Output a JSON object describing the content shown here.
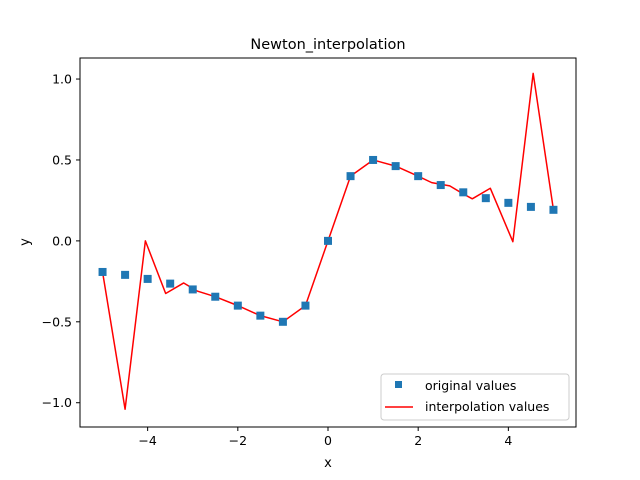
{
  "chart_data": {
    "type": "line",
    "title": "Newton_interpolation",
    "xlabel": "x",
    "ylabel": "y",
    "xlim": [
      -5.5,
      5.5
    ],
    "ylim": [
      -1.15,
      1.13
    ],
    "x_ticks": [
      -4,
      -2,
      0,
      2,
      4
    ],
    "x_tick_labels": [
      "−4",
      "−2",
      "0",
      "2",
      "4"
    ],
    "y_ticks": [
      -1.0,
      -0.5,
      0.0,
      0.5,
      1.0
    ],
    "y_tick_labels": [
      "−1.0",
      "−0.5",
      "0.0",
      "0.5",
      "1.0"
    ],
    "grid": false,
    "legend_position": "lower-right",
    "series": [
      {
        "name": "original values",
        "style": "markers",
        "marker": "square",
        "color": "#1f77b4",
        "x": [
          -5,
          -4.5,
          -4,
          -3.5,
          -3,
          -2.5,
          -2,
          -1.5,
          -1,
          -0.5,
          0,
          0.5,
          1,
          1.5,
          2,
          2.5,
          3,
          3.5,
          4,
          4.5,
          5
        ],
        "y": [
          -0.192,
          -0.21,
          -0.235,
          -0.264,
          -0.3,
          -0.345,
          -0.4,
          -0.462,
          -0.5,
          -0.4,
          0.0,
          0.4,
          0.5,
          0.462,
          0.4,
          0.345,
          0.3,
          0.264,
          0.235,
          0.21,
          0.192
        ]
      },
      {
        "name": "interpolation values",
        "style": "line",
        "color": "#ff0000",
        "x": [
          -5,
          -4.5,
          -4.05,
          -3.6,
          -3.2,
          -2.9,
          -2.5,
          -2.0,
          -1.5,
          -1.0,
          -0.5,
          0,
          0.5,
          1.0,
          1.5,
          2.0,
          2.3,
          2.7,
          3.0,
          3.2,
          3.6,
          4.1,
          4.55,
          5.0
        ],
        "y": [
          -0.192,
          -1.04,
          0.0,
          -0.325,
          -0.26,
          -0.31,
          -0.345,
          -0.4,
          -0.462,
          -0.5,
          -0.4,
          0.0,
          0.4,
          0.5,
          0.462,
          0.4,
          0.36,
          0.34,
          0.29,
          0.26,
          0.325,
          -0.005,
          1.035,
          0.192
        ]
      }
    ]
  }
}
